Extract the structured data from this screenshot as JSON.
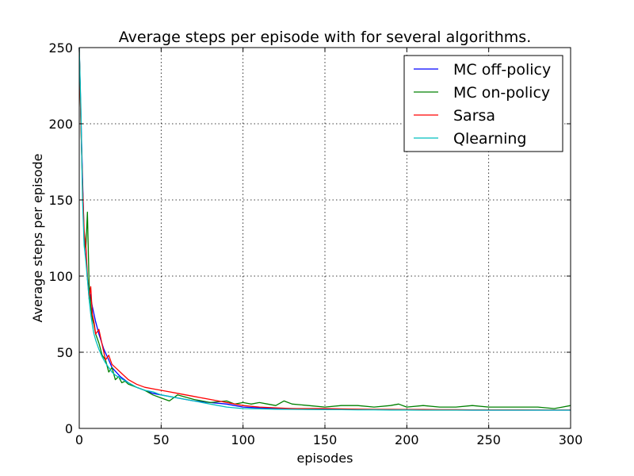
{
  "chart_data": {
    "type": "line",
    "title": "Average steps per episode with for several algorithms.",
    "xlabel": "episodes",
    "ylabel": "Average steps per episode",
    "xlim": [
      0,
      300
    ],
    "ylim": [
      0,
      250
    ],
    "xticks": [
      "0",
      "50",
      "100",
      "150",
      "200",
      "250",
      "300"
    ],
    "yticks": [
      "0",
      "50",
      "100",
      "150",
      "200",
      "250"
    ],
    "grid": true,
    "legend_position": "top-right",
    "series": [
      {
        "name": "MC off-policy",
        "color": "#0000ff",
        "x": [
          0,
          1,
          2,
          3,
          4,
          5,
          6,
          8,
          10,
          12,
          15,
          18,
          20,
          25,
          30,
          35,
          40,
          45,
          50,
          60,
          70,
          80,
          90,
          100,
          110,
          120,
          130,
          140,
          150,
          160,
          170,
          180,
          190,
          200,
          210,
          220,
          230,
          240,
          250,
          260,
          270,
          280,
          290,
          300
        ],
        "y": [
          250,
          205,
          165,
          125,
          118,
          98,
          92,
          80,
          70,
          62,
          52,
          45,
          40,
          34,
          30,
          27,
          25,
          23,
          22,
          20,
          18,
          17,
          16,
          14,
          13.5,
          13,
          13,
          12.8,
          12.6,
          12.5,
          12.4,
          12.3,
          12.3,
          12.2,
          12.2,
          12.1,
          12.1,
          12,
          12,
          12,
          12,
          12,
          12,
          12
        ]
      },
      {
        "name": "MC on-policy",
        "color": "#008000",
        "x": [
          0,
          1,
          2,
          3,
          4,
          5,
          6,
          7,
          8,
          9,
          10,
          12,
          14,
          16,
          18,
          20,
          22,
          24,
          26,
          28,
          30,
          35,
          40,
          45,
          50,
          55,
          60,
          70,
          80,
          90,
          95,
          100,
          105,
          110,
          115,
          120,
          125,
          130,
          140,
          150,
          160,
          170,
          180,
          190,
          195,
          200,
          210,
          220,
          230,
          240,
          250,
          260,
          270,
          280,
          290,
          295,
          300
        ],
        "y": [
          250,
          200,
          160,
          122,
          118,
          142,
          95,
          80,
          72,
          68,
          62,
          56,
          48,
          45,
          37,
          40,
          32,
          34,
          30,
          31,
          29,
          27,
          25,
          22,
          20,
          18,
          22,
          19,
          17,
          18,
          16,
          17,
          16,
          17,
          16,
          15,
          18,
          16,
          15,
          14,
          15,
          15,
          14,
          15,
          16,
          14,
          15,
          14,
          14,
          15,
          14,
          14,
          14,
          14,
          13,
          14,
          15
        ]
      },
      {
        "name": "Sarsa",
        "color": "#ff0000",
        "x": [
          0,
          1,
          2,
          3,
          4,
          5,
          6,
          7,
          8,
          9,
          10,
          12,
          14,
          16,
          18,
          20,
          22,
          25,
          30,
          35,
          40,
          45,
          50,
          55,
          60,
          70,
          80,
          90,
          100,
          110,
          120,
          130,
          140,
          150,
          160,
          170,
          180,
          190,
          200,
          210,
          220,
          230,
          240,
          250,
          260,
          270,
          280,
          290,
          300
        ],
        "y": [
          250,
          200,
          160,
          130,
          120,
          100,
          85,
          93,
          75,
          70,
          62,
          65,
          55,
          45,
          48,
          42,
          40,
          37,
          32,
          29,
          27,
          26,
          25,
          24,
          23,
          21,
          19,
          17,
          15,
          14,
          13.5,
          13,
          13,
          13,
          12.8,
          12.6,
          12.5,
          12.5,
          12.4,
          12.4,
          12.3,
          12.3,
          12.2,
          12.2,
          12.2,
          12.2,
          12.1,
          12.1,
          12.1
        ]
      },
      {
        "name": "Qlearning",
        "color": "#00bfbf",
        "x": [
          0,
          1,
          2,
          3,
          4,
          5,
          6,
          7,
          8,
          9,
          10,
          12,
          14,
          16,
          18,
          20,
          22,
          25,
          30,
          35,
          40,
          45,
          50,
          55,
          60,
          70,
          80,
          90,
          100,
          110,
          120,
          130,
          140,
          150,
          160,
          170,
          180,
          190,
          200,
          210,
          220,
          230,
          240,
          250,
          260,
          270,
          280,
          290,
          300
        ],
        "y": [
          250,
          210,
          150,
          120,
          110,
          98,
          85,
          75,
          68,
          62,
          58,
          52,
          47,
          43,
          40,
          37,
          35,
          33,
          30,
          27,
          25,
          24,
          22,
          21,
          20,
          18,
          16,
          14,
          13,
          12.8,
          12.6,
          12.5,
          12.4,
          12.3,
          12.3,
          12.2,
          12.2,
          12.1,
          12.1,
          12,
          12,
          12,
          12,
          12,
          12,
          12,
          12,
          12,
          12
        ]
      }
    ]
  }
}
